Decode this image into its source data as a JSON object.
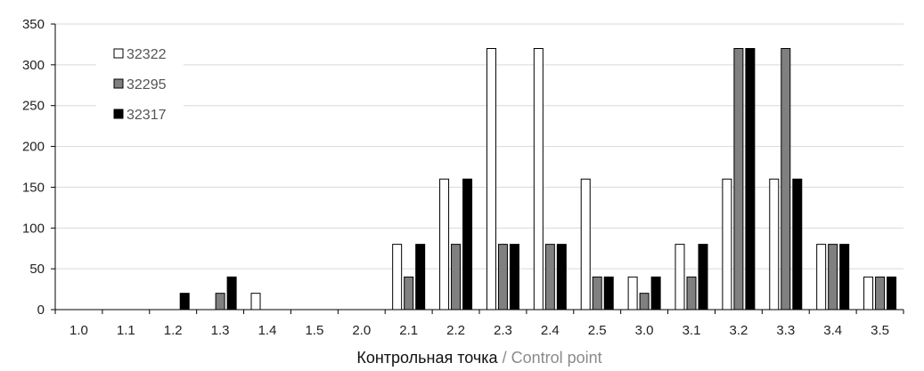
{
  "chart_data": {
    "type": "bar",
    "title": "",
    "xlabel": "Контрольная точка / Control point",
    "xlabel_parts": {
      "ru": "Контрольная точка",
      "sep": " / ",
      "en": "Control point"
    },
    "ylabel": "",
    "ylim": [
      0,
      350
    ],
    "yticks": [
      "0",
      "50",
      "100",
      "150",
      "200",
      "250",
      "300",
      "350"
    ],
    "categories": [
      "1.0",
      "1.1",
      "1.2",
      "1.3",
      "1.4",
      "1.5",
      "2.0",
      "2.1",
      "2.2",
      "2.3",
      "2.4",
      "2.5",
      "3.0",
      "3.1",
      "3.2",
      "3.3",
      "3.4",
      "3.5"
    ],
    "series": [
      {
        "name": "32322",
        "color": "#ffffff",
        "values": [
          0,
          0,
          0,
          0,
          20,
          0,
          0,
          80,
          160,
          320,
          320,
          160,
          40,
          80,
          160,
          160,
          80,
          40
        ]
      },
      {
        "name": "32295",
        "color": "#808080",
        "values": [
          0,
          0,
          0,
          20,
          0,
          0,
          0,
          40,
          80,
          80,
          80,
          40,
          20,
          40,
          320,
          320,
          80,
          40
        ]
      },
      {
        "name": "32317",
        "color": "#000000",
        "values": [
          0,
          0,
          20,
          40,
          0,
          0,
          0,
          80,
          160,
          80,
          80,
          40,
          40,
          80,
          320,
          160,
          80,
          40
        ]
      }
    ],
    "grid": true,
    "legend_position": "top-left"
  }
}
